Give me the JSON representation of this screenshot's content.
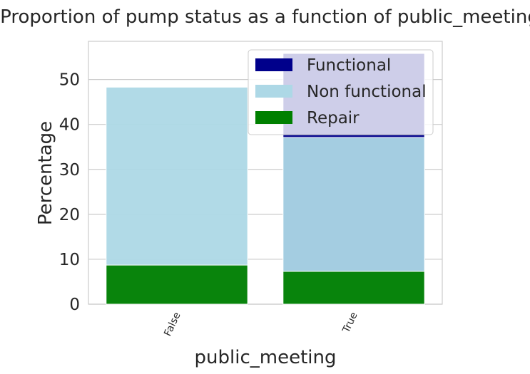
{
  "chart_data": {
    "type": "bar",
    "title": "Proportion of pump status as a function of public_meeting",
    "xlabel": "public_meeting",
    "ylabel": "Percentage",
    "categories": [
      "False",
      "True"
    ],
    "ylim": [
      0,
      58.5
    ],
    "yticks": [
      0,
      10,
      20,
      30,
      40,
      50
    ],
    "grid": true,
    "legend_position": "top-right",
    "series": [
      {
        "name": "Functional",
        "values": [
          null,
          55.8
        ],
        "color": "#00008b"
      },
      {
        "name": "Non functional",
        "values": [
          48.3,
          37.1
        ],
        "color": "#add8e6"
      },
      {
        "name": "Repair",
        "values": [
          8.7,
          7.3
        ],
        "color": "#008000"
      }
    ]
  }
}
